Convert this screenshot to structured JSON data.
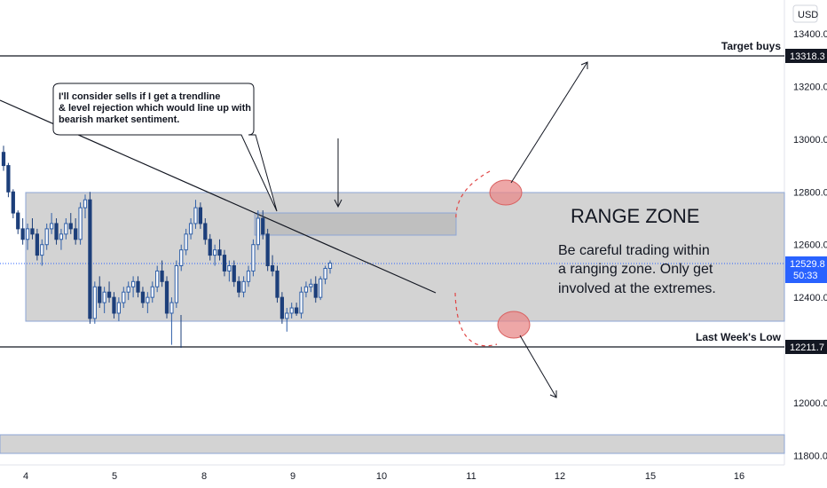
{
  "chart_data": {
    "type": "candlestick",
    "currency": "USD",
    "x_ticks": [
      "4",
      "5",
      "8",
      "9",
      "10",
      "11",
      "12",
      "15",
      "16"
    ],
    "y_ticks": [
      "13400.0",
      "13200.0",
      "13000.0",
      "12800.0",
      "12600.0",
      "12400.0",
      "12000.0",
      "11800.0"
    ],
    "ylim": [
      11780,
      13500
    ],
    "price_markers": [
      {
        "value": "13318.3",
        "style": "dark",
        "label": "Target buys"
      },
      {
        "value": "12211.7",
        "style": "dark",
        "label": "Last Week's Low"
      },
      {
        "value": "12529.8",
        "sub": "50:33",
        "style": "blue"
      }
    ],
    "range_zone": {
      "top": 12800,
      "bottom": 12300
    },
    "lower_zone": {
      "top": 11890,
      "bottom": 11820
    },
    "resistance_box": {
      "top": 12728,
      "bottom": 12640
    },
    "candles": [
      [
        12950,
        12975,
        12880,
        12900
      ],
      [
        12900,
        12910,
        12780,
        12800
      ],
      [
        12800,
        12810,
        12700,
        12720
      ],
      [
        12720,
        12730,
        12640,
        12660
      ],
      [
        12660,
        12700,
        12600,
        12620
      ],
      [
        12620,
        12680,
        12580,
        12660
      ],
      [
        12660,
        12700,
        12620,
        12640
      ],
      [
        12640,
        12660,
        12540,
        12560
      ],
      [
        12560,
        12620,
        12520,
        12600
      ],
      [
        12600,
        12680,
        12580,
        12660
      ],
      [
        12660,
        12720,
        12640,
        12680
      ],
      [
        12680,
        12700,
        12600,
        12620
      ],
      [
        12620,
        12660,
        12580,
        12640
      ],
      [
        12640,
        12700,
        12620,
        12680
      ],
      [
        12680,
        12720,
        12640,
        12660
      ],
      [
        12660,
        12700,
        12600,
        12620
      ],
      [
        12620,
        12760,
        12600,
        12740
      ],
      [
        12740,
        12790,
        12700,
        12770
      ],
      [
        12770,
        12800,
        12300,
        12320
      ],
      [
        12320,
        12460,
        12300,
        12440
      ],
      [
        12440,
        12480,
        12360,
        12380
      ],
      [
        12380,
        12440,
        12340,
        12420
      ],
      [
        12420,
        12460,
        12380,
        12400
      ],
      [
        12400,
        12420,
        12320,
        12340
      ],
      [
        12340,
        12400,
        12310,
        12380
      ],
      [
        12380,
        12440,
        12360,
        12420
      ],
      [
        12420,
        12460,
        12390,
        12440
      ],
      [
        12440,
        12480,
        12400,
        12460
      ],
      [
        12460,
        12480,
        12400,
        12420
      ],
      [
        12420,
        12440,
        12360,
        12380
      ],
      [
        12380,
        12420,
        12340,
        12400
      ],
      [
        12400,
        12460,
        12380,
        12440
      ],
      [
        12440,
        12520,
        12420,
        12500
      ],
      [
        12500,
        12540,
        12440,
        12460
      ],
      [
        12460,
        12480,
        12320,
        12340
      ],
      [
        12340,
        12400,
        12220,
        12380
      ],
      [
        12380,
        12540,
        12360,
        12520
      ],
      [
        12520,
        12600,
        12500,
        12580
      ],
      [
        12580,
        12660,
        12560,
        12640
      ],
      [
        12640,
        12700,
        12620,
        12680
      ],
      [
        12680,
        12770,
        12660,
        12740
      ],
      [
        12740,
        12760,
        12660,
        12680
      ],
      [
        12680,
        12700,
        12600,
        12620
      ],
      [
        12620,
        12640,
        12540,
        12560
      ],
      [
        12560,
        12600,
        12520,
        12580
      ],
      [
        12580,
        12620,
        12540,
        12560
      ],
      [
        12560,
        12580,
        12480,
        12500
      ],
      [
        12500,
        12540,
        12460,
        12520
      ],
      [
        12520,
        12540,
        12440,
        12460
      ],
      [
        12460,
        12480,
        12400,
        12420
      ],
      [
        12420,
        12480,
        12400,
        12460
      ],
      [
        12460,
        12520,
        12440,
        12500
      ],
      [
        12500,
        12620,
        12480,
        12600
      ],
      [
        12600,
        12730,
        12580,
        12700
      ],
      [
        12700,
        12730,
        12620,
        12640
      ],
      [
        12640,
        12660,
        12500,
        12520
      ],
      [
        12520,
        12560,
        12480,
        12500
      ],
      [
        12500,
        12520,
        12380,
        12400
      ],
      [
        12400,
        12420,
        12300,
        12320
      ],
      [
        12320,
        12360,
        12270,
        12340
      ],
      [
        12340,
        12380,
        12320,
        12360
      ],
      [
        12360,
        12380,
        12330,
        12340
      ],
      [
        12340,
        12440,
        12320,
        12420
      ],
      [
        12420,
        12460,
        12400,
        12440
      ],
      [
        12440,
        12470,
        12420,
        12450
      ],
      [
        12450,
        12480,
        12380,
        12400
      ],
      [
        12400,
        12480,
        12390,
        12470
      ],
      [
        12470,
        12520,
        12450,
        12510
      ],
      [
        12510,
        12540,
        12490,
        12530
      ]
    ]
  },
  "labels": {
    "target_buys": "Target buys",
    "last_weeks_low": "Last Week's Low",
    "range_zone_title": "RANGE ZONE",
    "range_zone_body": [
      "Be careful trading within",
      "a ranging zone. Only get",
      "involved at the extremes."
    ],
    "callout": [
      "I'll consider sells if I get a trendline",
      "& level rejection which would line up with",
      "bearish market sentiment."
    ],
    "currency_button": "USD",
    "countdown": "50:33"
  },
  "colors": {
    "bull": "#2f5fa8",
    "bear": "#1d3f7a",
    "zone_fill": "#d3d3d3",
    "zone_border": "#8ca6d6",
    "ellipse": "#e88a8a",
    "price_blue": "#2962ff"
  }
}
